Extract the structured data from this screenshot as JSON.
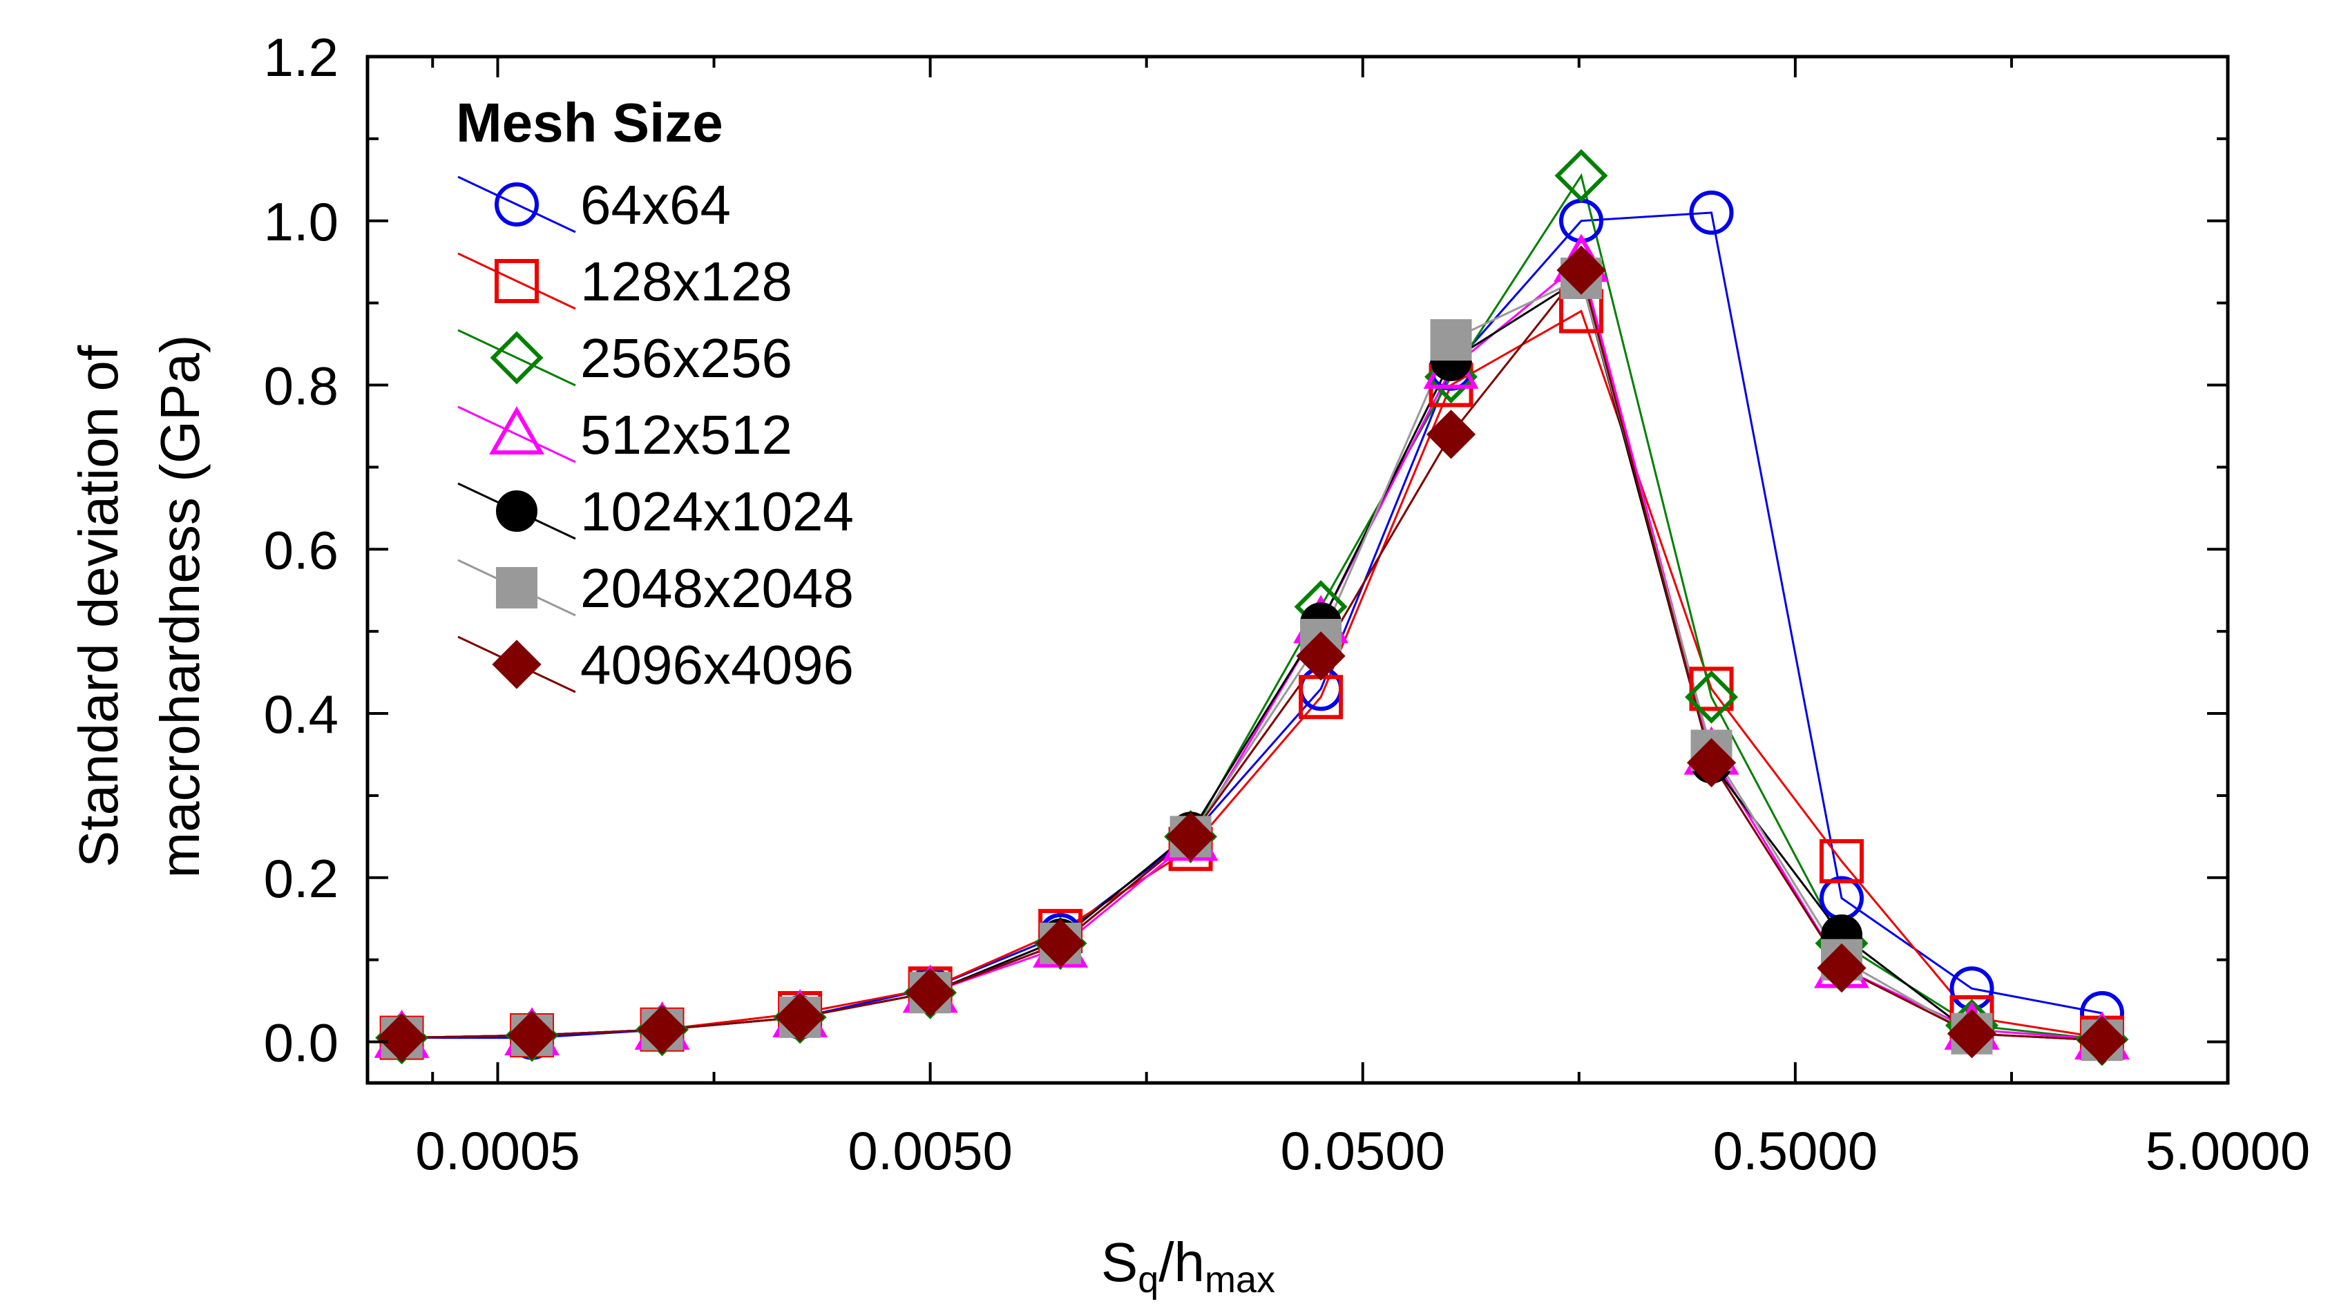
{
  "chart_data": {
    "type": "line",
    "xscale": "log",
    "xlim": [
      0.00025,
      5.0
    ],
    "ylim": [
      -0.05,
      1.2
    ],
    "x_ticks": [
      0.0005,
      0.005,
      0.05,
      0.5,
      5.0
    ],
    "x_tick_labels": [
      "0.0005",
      "0.0050",
      "0.0500",
      "0.5000",
      "5.0000"
    ],
    "y_ticks": [
      0.0,
      0.2,
      0.4,
      0.6,
      0.8,
      1.0,
      1.2
    ],
    "y_tick_labels": [
      "0.0",
      "0.2",
      "0.4",
      "0.6",
      "0.8",
      "1.0",
      "1.2"
    ],
    "xlabel": {
      "base": "S",
      "sub1": "q",
      "mid": "/h",
      "sub2": "max"
    },
    "ylabel_line1": "Standard deviation of",
    "ylabel_line2": "macrohardness (GPa)",
    "grid": false,
    "legend": {
      "title": "Mesh Size",
      "placement": "top-left"
    },
    "x": [
      0.0003,
      0.0006,
      0.0012,
      0.0025,
      0.005,
      0.01,
      0.02,
      0.04,
      0.08,
      0.16,
      0.32,
      0.64,
      1.28,
      2.56
    ],
    "series": [
      {
        "name": "64x64",
        "color": "#0000ee",
        "marker": "circle-open",
        "values": [
          0.005,
          0.005,
          0.015,
          0.03,
          0.065,
          0.13,
          0.25,
          0.43,
          0.82,
          1.0,
          1.01,
          0.175,
          0.065,
          0.035
        ]
      },
      {
        "name": "128x128",
        "color": "#ee0000",
        "marker": "square-open",
        "values": [
          0.005,
          0.008,
          0.015,
          0.035,
          0.065,
          0.135,
          0.235,
          0.42,
          0.8,
          0.89,
          0.43,
          0.22,
          0.03,
          0.005
        ]
      },
      {
        "name": "256x256",
        "color": "#008000",
        "marker": "diamond-open",
        "values": [
          0.005,
          0.008,
          0.015,
          0.03,
          0.06,
          0.12,
          0.25,
          0.53,
          0.81,
          1.055,
          0.42,
          0.12,
          0.02,
          0.003
        ]
      },
      {
        "name": "512x512",
        "color": "#ff00ff",
        "marker": "triangle-open",
        "values": [
          0.005,
          0.008,
          0.015,
          0.03,
          0.06,
          0.115,
          0.245,
          0.51,
          0.82,
          0.95,
          0.35,
          0.09,
          0.015,
          0.003
        ]
      },
      {
        "name": "1024x1024",
        "color": "#000000",
        "marker": "circle-filled",
        "values": [
          0.005,
          0.008,
          0.015,
          0.03,
          0.06,
          0.125,
          0.255,
          0.51,
          0.83,
          0.93,
          0.34,
          0.13,
          0.01,
          0.002
        ]
      },
      {
        "name": "2048x2048",
        "color": "#999999",
        "marker": "square-filled",
        "values": [
          0.005,
          0.008,
          0.015,
          0.03,
          0.06,
          0.12,
          0.25,
          0.49,
          0.855,
          0.93,
          0.355,
          0.1,
          0.01,
          0.002
        ]
      },
      {
        "name": "4096x4096",
        "color": "#800000",
        "marker": "diamond-filled",
        "values": [
          0.005,
          0.008,
          0.015,
          0.03,
          0.06,
          0.12,
          0.25,
          0.47,
          0.74,
          0.94,
          0.34,
          0.09,
          0.01,
          0.002
        ]
      }
    ]
  }
}
